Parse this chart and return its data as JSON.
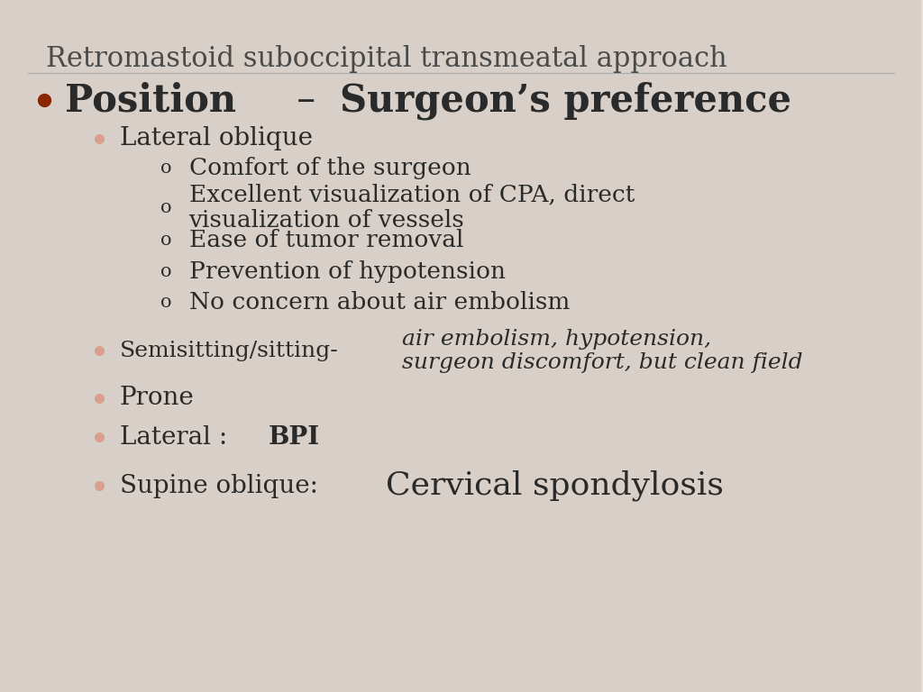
{
  "title": "Retromastoid suboccipital transmeatal approach",
  "background_color": "#d8d0c8",
  "slide_bg": "#e8e0d8",
  "title_color": "#4a4a4a",
  "title_fontsize": 22,
  "bullet_color_dark": "#8B2500",
  "bullet_color_light": "#d9a090",
  "text_color": "#2a2a2a",
  "content": [
    {
      "level": 0,
      "bullet": "filled_dark",
      "text_parts": [
        {
          "text": "Position",
          "bold": true,
          "italic": false,
          "size": 30
        },
        {
          "text": " – ",
          "bold": false,
          "italic": false,
          "size": 30
        },
        {
          "text": "Surgeon’s preference",
          "bold": true,
          "italic": false,
          "size": 30
        }
      ],
      "indent": 0.07
    },
    {
      "level": 1,
      "bullet": "filled_light",
      "text_parts": [
        {
          "text": "Lateral oblique",
          "bold": false,
          "italic": false,
          "size": 20
        }
      ],
      "indent": 0.13
    },
    {
      "level": 2,
      "bullet": "o",
      "text_parts": [
        {
          "text": "Comfort of the surgeon",
          "bold": false,
          "italic": false,
          "size": 19
        }
      ],
      "indent": 0.205
    },
    {
      "level": 2,
      "bullet": "o",
      "text_parts": [
        {
          "text": "Excellent visualization of CPA, direct\nvisualization of vessels",
          "bold": false,
          "italic": false,
          "size": 19
        }
      ],
      "indent": 0.205
    },
    {
      "level": 2,
      "bullet": "o",
      "text_parts": [
        {
          "text": "Ease of tumor removal",
          "bold": false,
          "italic": false,
          "size": 19
        }
      ],
      "indent": 0.205
    },
    {
      "level": 2,
      "bullet": "o",
      "text_parts": [
        {
          "text": "Prevention of hypotension",
          "bold": false,
          "italic": false,
          "size": 19
        }
      ],
      "indent": 0.205
    },
    {
      "level": 2,
      "bullet": "o",
      "text_parts": [
        {
          "text": "No concern about air embolism",
          "bold": false,
          "italic": false,
          "size": 19
        }
      ],
      "indent": 0.205
    },
    {
      "level": 1,
      "bullet": "filled_light",
      "text_parts": [
        {
          "text": "Semisitting/sitting-",
          "bold": false,
          "italic": false,
          "size": 18
        },
        {
          "text": "air embolism, hypotension,\nsurgeon discomfort, but clean field",
          "bold": false,
          "italic": true,
          "size": 18
        }
      ],
      "indent": 0.13
    },
    {
      "level": 1,
      "bullet": "filled_light",
      "text_parts": [
        {
          "text": "Prone",
          "bold": false,
          "italic": false,
          "size": 20
        }
      ],
      "indent": 0.13
    },
    {
      "level": 1,
      "bullet": "filled_light",
      "text_parts": [
        {
          "text": "Lateral : ",
          "bold": false,
          "italic": false,
          "size": 20
        },
        {
          "text": "BPI",
          "bold": true,
          "italic": false,
          "size": 20
        }
      ],
      "indent": 0.13
    },
    {
      "level": 1,
      "bullet": "filled_light",
      "text_parts": [
        {
          "text": "Supine oblique: ",
          "bold": false,
          "italic": false,
          "size": 20
        },
        {
          "text": "Cervical spondylosis",
          "bold": false,
          "italic": false,
          "size": 26
        }
      ],
      "indent": 0.13
    }
  ]
}
